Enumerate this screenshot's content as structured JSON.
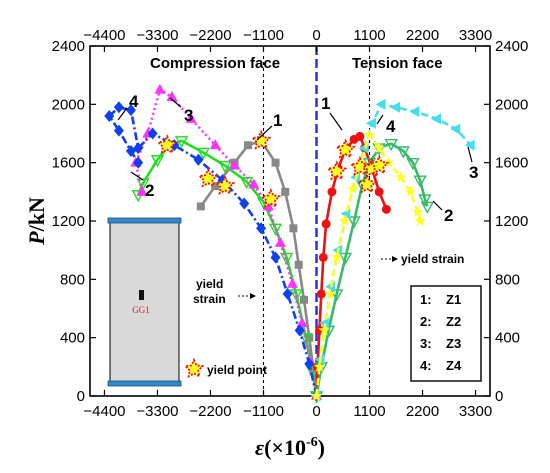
{
  "chart_data": {
    "type": "line",
    "xlabel_symbol": "ε",
    "xlabel_unit": "(×10",
    "xlabel_exp": "-6",
    "xlabel_close": ")",
    "ylabel_symbol": "P",
    "ylabel_unit": "/kN",
    "xlim": [
      -4700,
      3600
    ],
    "ylim": [
      0,
      2400
    ],
    "x_ticks": [
      -4400,
      -3300,
      -2200,
      -1100,
      0,
      1100,
      2200,
      3300
    ],
    "y_ticks": [
      0,
      400,
      800,
      1200,
      1600,
      2000,
      2400
    ],
    "regions": {
      "compression": "Compression face",
      "tension": "Tension face"
    },
    "yield_strain_lines": [
      -1100,
      1100
    ],
    "annotations": {
      "yield_strain_left_line1": "yield",
      "yield_strain_left_line2": "strain",
      "yield_strain_right": "yield strain",
      "yield_point": "yield point",
      "gauge": "GG1"
    },
    "legend": [
      {
        "num": "1:",
        "label": "Z1"
      },
      {
        "num": "2:",
        "label": "Z2"
      },
      {
        "num": "3:",
        "label": "Z3"
      },
      {
        "num": "4:",
        "label": "Z4"
      }
    ],
    "series_labels": [
      "1",
      "2",
      "3",
      "4",
      "1",
      "2",
      "3",
      "4"
    ],
    "series": [
      {
        "id": "1",
        "face": "compression",
        "color": "#888888",
        "marker": "square",
        "dash": "solid",
        "points": [
          [
            0,
            0
          ],
          [
            -60,
            170
          ],
          [
            -150,
            400
          ],
          [
            -260,
            660
          ],
          [
            -370,
            900
          ],
          [
            -480,
            1150
          ],
          [
            -650,
            1400
          ],
          [
            -850,
            1600
          ],
          [
            -1150,
            1750
          ],
          [
            -1420,
            1720
          ],
          [
            -1700,
            1600
          ],
          [
            -2100,
            1440
          ],
          [
            -2400,
            1300
          ]
        ]
      },
      {
        "id": "2",
        "face": "compression",
        "color": "#22dd22",
        "marker": "triangle-down-open",
        "dash": "solid",
        "points": [
          [
            0,
            0
          ],
          [
            -80,
            170
          ],
          [
            -220,
            400
          ],
          [
            -420,
            700
          ],
          [
            -620,
            950
          ],
          [
            -850,
            1150
          ],
          [
            -1100,
            1330
          ],
          [
            -1450,
            1470
          ],
          [
            -1900,
            1580
          ],
          [
            -2350,
            1670
          ],
          [
            -2800,
            1750
          ],
          [
            -3050,
            1720
          ],
          [
            -3300,
            1620
          ],
          [
            -3600,
            1460
          ],
          [
            -3700,
            1380
          ]
        ]
      },
      {
        "id": "3",
        "face": "compression",
        "color": "#ff33ff",
        "marker": "triangle",
        "dash": "dot",
        "points": [
          [
            0,
            0
          ],
          [
            -120,
            230
          ],
          [
            -300,
            500
          ],
          [
            -500,
            770
          ],
          [
            -750,
            1050
          ],
          [
            -1000,
            1300
          ],
          [
            -1300,
            1450
          ],
          [
            -1700,
            1580
          ],
          [
            -2100,
            1720
          ],
          [
            -2600,
            1900
          ],
          [
            -3000,
            2050
          ],
          [
            -3250,
            2100
          ],
          [
            -3500,
            1800
          ],
          [
            -3750,
            1600
          ],
          [
            -3620,
            1400
          ]
        ]
      },
      {
        "id": "4",
        "face": "compression",
        "color": "#1040ee",
        "marker": "diamond",
        "dash": "dashdot",
        "points": [
          [
            0,
            0
          ],
          [
            -150,
            220
          ],
          [
            -350,
            450
          ],
          [
            -600,
            700
          ],
          [
            -850,
            950
          ],
          [
            -1150,
            1150
          ],
          [
            -1500,
            1320
          ],
          [
            -1950,
            1480
          ],
          [
            -2450,
            1620
          ],
          [
            -2950,
            1720
          ],
          [
            -3400,
            1800
          ],
          [
            -3700,
            1700
          ],
          [
            -3850,
            1960
          ],
          [
            -4100,
            1980
          ],
          [
            -4300,
            1920
          ],
          [
            -4100,
            1820
          ],
          [
            -3850,
            1680
          ],
          [
            -3700,
            1600
          ]
        ]
      },
      {
        "id": "1",
        "face": "tension",
        "color": "#ee1111",
        "marker": "circle",
        "dash": "solid",
        "points": [
          [
            0,
            0
          ],
          [
            20,
            200
          ],
          [
            60,
            450
          ],
          [
            100,
            700
          ],
          [
            140,
            950
          ],
          [
            200,
            1180
          ],
          [
            320,
            1400
          ],
          [
            450,
            1560
          ],
          [
            600,
            1690
          ],
          [
            780,
            1760
          ],
          [
            900,
            1780
          ],
          [
            1000,
            1700
          ],
          [
            1150,
            1560
          ],
          [
            1300,
            1400
          ],
          [
            1450,
            1280
          ]
        ]
      },
      {
        "id": "2",
        "face": "tension",
        "color": "#33bb66",
        "marker": "triangle-down-open",
        "dash": "solid",
        "points": [
          [
            0,
            0
          ],
          [
            100,
            200
          ],
          [
            250,
            450
          ],
          [
            420,
            700
          ],
          [
            600,
            950
          ],
          [
            780,
            1200
          ],
          [
            950,
            1450
          ],
          [
            1100,
            1600
          ],
          [
            1300,
            1700
          ],
          [
            1550,
            1730
          ],
          [
            1800,
            1680
          ],
          [
            2000,
            1600
          ],
          [
            2150,
            1480
          ],
          [
            2250,
            1350
          ],
          [
            2300,
            1300
          ]
        ]
      },
      {
        "id": "3",
        "face": "tension",
        "color": "#44ddee",
        "marker": "triangle-left",
        "dash": "dash",
        "points": [
          [
            0,
            0
          ],
          [
            80,
            250
          ],
          [
            180,
            500
          ],
          [
            300,
            750
          ],
          [
            450,
            1000
          ],
          [
            620,
            1250
          ],
          [
            820,
            1500
          ],
          [
            1000,
            1700
          ],
          [
            1150,
            1870
          ],
          [
            1350,
            2000
          ],
          [
            1650,
            1980
          ],
          [
            2050,
            1950
          ],
          [
            2500,
            1900
          ],
          [
            2900,
            1830
          ],
          [
            3200,
            1720
          ]
        ]
      },
      {
        "id": "4",
        "face": "tension",
        "color": "#ffff22",
        "marker": "star",
        "dash": "dash",
        "points": [
          [
            0,
            0
          ],
          [
            60,
            200
          ],
          [
            160,
            450
          ],
          [
            280,
            700
          ],
          [
            420,
            950
          ],
          [
            580,
            1200
          ],
          [
            750,
            1420
          ],
          [
            920,
            1600
          ],
          [
            1100,
            1790
          ],
          [
            1300,
            1700
          ],
          [
            1500,
            1600
          ],
          [
            1750,
            1500
          ],
          [
            1950,
            1400
          ],
          [
            2100,
            1260
          ],
          [
            2150,
            1200
          ]
        ]
      }
    ],
    "yield_points": [
      [
        -1150,
        1750
      ],
      [
        -2250,
        1490
      ],
      [
        -1900,
        1440
      ],
      [
        -3100,
        1720
      ],
      [
        -950,
        1350
      ],
      [
        600,
        1690
      ],
      [
        420,
        1540
      ],
      [
        900,
        1570
      ],
      [
        1050,
        1450
      ],
      [
        1150,
        1560
      ],
      [
        1300,
        1580
      ]
    ]
  }
}
